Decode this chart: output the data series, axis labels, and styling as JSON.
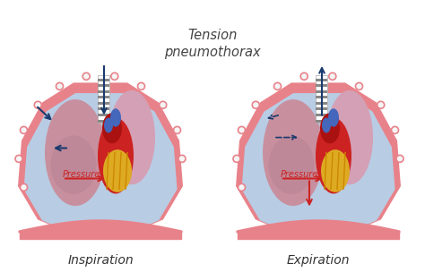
{
  "title": "Tension\npneumothorax",
  "title_fontsize": 10.5,
  "title_color": "#444444",
  "label_inspiration": "Inspiration",
  "label_expiration": "Expiration",
  "label_fontsize": 10,
  "pressure_label": "Pressure",
  "pressure_fontsize": 7,
  "bg_color": "#ffffff",
  "lung_cavity_color": "#b8cce4",
  "chest_wall_color": "#e8828a",
  "chest_wall_inner": "#e8828a",
  "left_lung_color": "#c8909e",
  "right_lung_color": "#d4a0b5",
  "heart_red": "#cc2222",
  "heart_yellow": "#ddaa22",
  "heart_blue": "#4466bb",
  "trachea_bg": "#f0f0f0",
  "trachea_stripe": "#999999",
  "arrow_color": "#1a3a6e",
  "pressure_arrow_color": "#cc2222",
  "rib_dot_fill": "#f5f5f5",
  "rib_dot_edge": "#e8828a",
  "diaphragm_color": "#e8828a"
}
